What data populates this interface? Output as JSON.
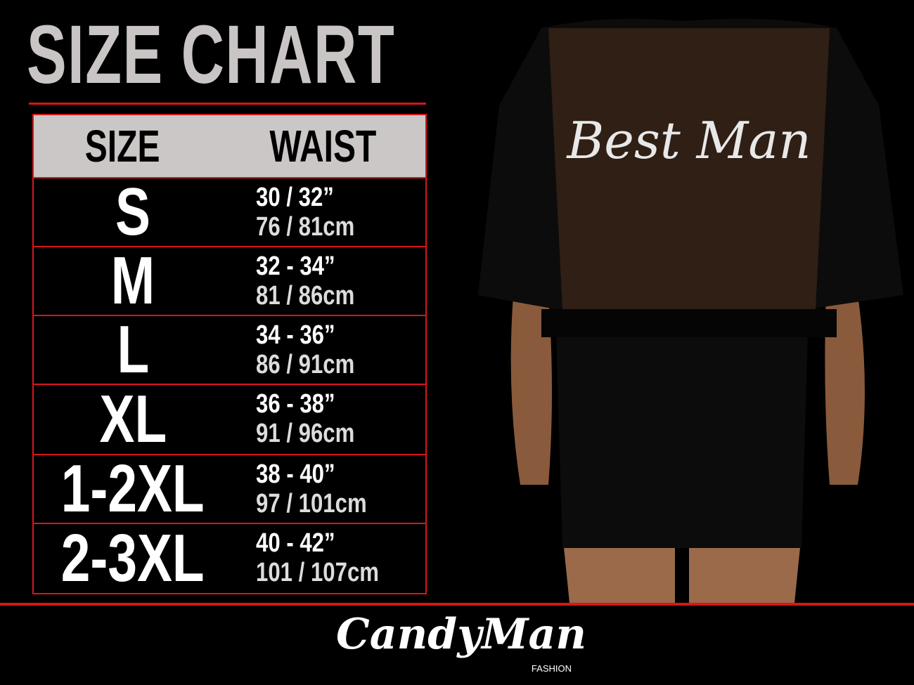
{
  "title": "SIZE CHART",
  "table": {
    "headers": {
      "size": "SIZE",
      "waist": "WAIST"
    },
    "rows": [
      {
        "size": "S",
        "inches": "30 / 32”",
        "cm": "76 / 81cm"
      },
      {
        "size": "M",
        "inches": "32 - 34”",
        "cm": "81 / 86cm"
      },
      {
        "size": "L",
        "inches": "34 - 36”",
        "cm": "86 / 91cm"
      },
      {
        "size": "XL",
        "inches": "36 - 38”",
        "cm": "91 / 96cm"
      },
      {
        "size": "1-2XL",
        "inches": "38 - 40”",
        "cm": "97 / 101cm"
      },
      {
        "size": "2-3XL",
        "inches": "40 - 42”",
        "cm": "101 / 107cm"
      }
    ]
  },
  "product_photo": {
    "garment_text": "Best Man"
  },
  "logo": {
    "brand": "CandyMan",
    "sub": "FASHION"
  },
  "colors": {
    "accent": "#d8161a",
    "header_bg": "#cbc7c7",
    "background": "#000000"
  }
}
